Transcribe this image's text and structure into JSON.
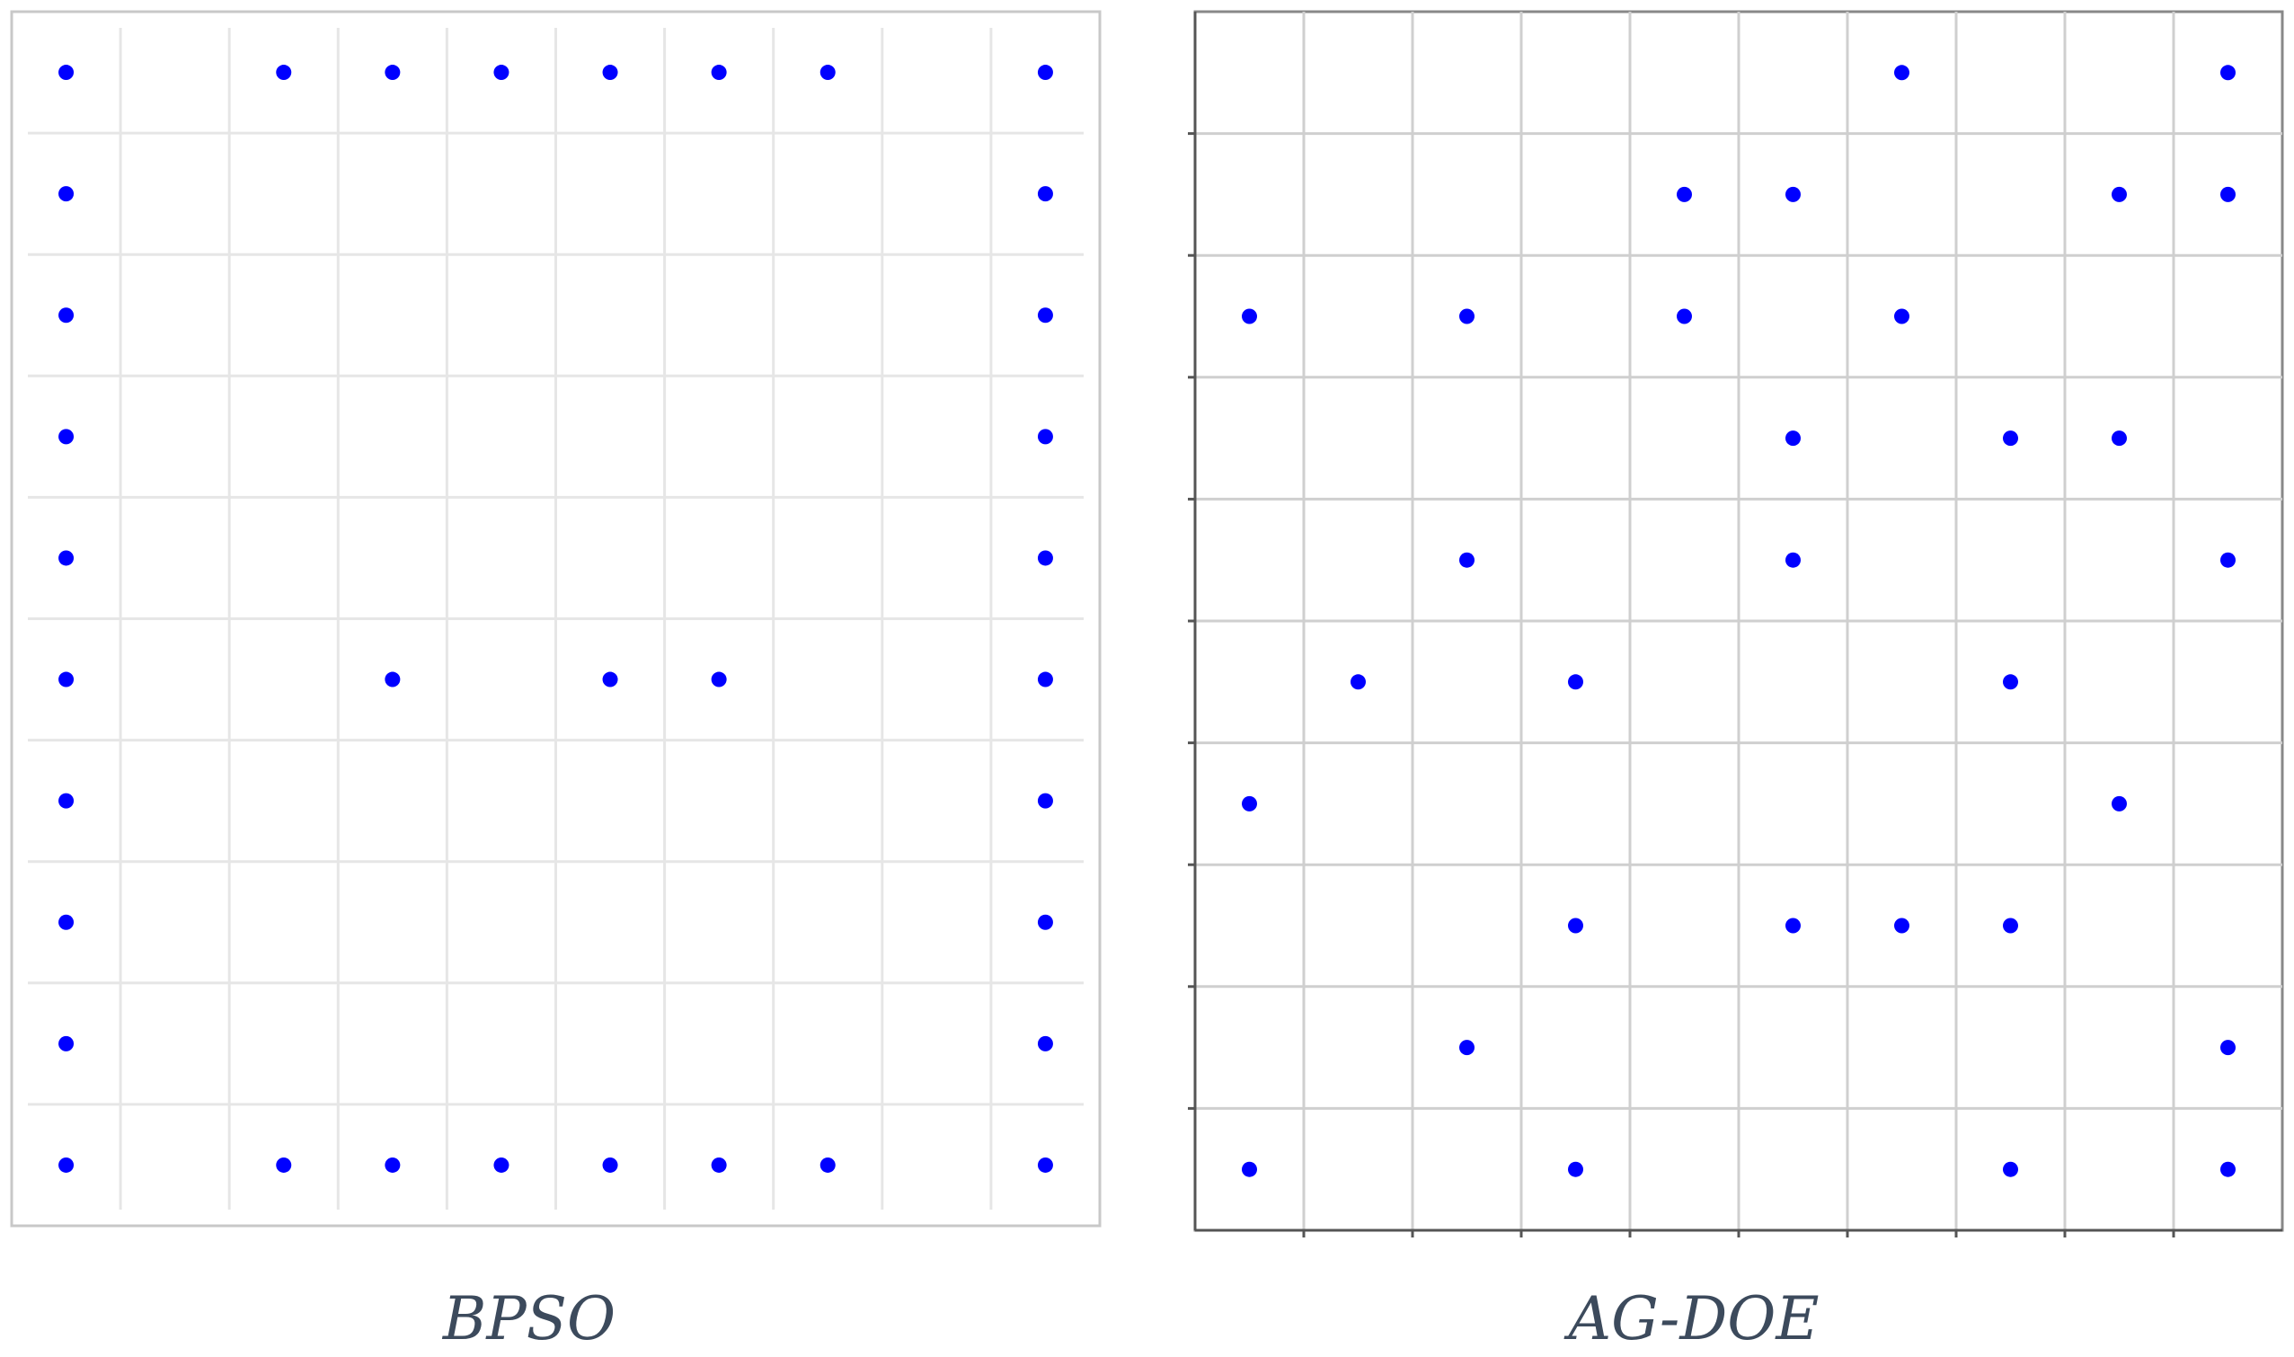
{
  "chart_data": [
    {
      "type": "scatter",
      "title": "BPSO",
      "color": "#0000ff",
      "grid": true,
      "grid_color": "#e6e6e6",
      "axis_ticks": false,
      "xlim": [
        0.5,
        10.5
      ],
      "ylim": [
        0.5,
        10.5
      ],
      "xticks": [
        1.5,
        2.5,
        3.5,
        4.5,
        5.5,
        6.5,
        7.5,
        8.5,
        9.5
      ],
      "yticks": [
        1.5,
        2.5,
        3.5,
        4.5,
        5.5,
        6.5,
        7.5,
        8.5,
        9.5
      ],
      "x": [
        1,
        3,
        4,
        5,
        6,
        7,
        8,
        10,
        1,
        10,
        1,
        10,
        1,
        10,
        1,
        10,
        1,
        4,
        6,
        7,
        10,
        1,
        10,
        1,
        10,
        1,
        10,
        1,
        3,
        4,
        5,
        6,
        7,
        8,
        10
      ],
      "y": [
        10,
        10,
        10,
        10,
        10,
        10,
        10,
        10,
        9,
        9,
        8,
        8,
        7,
        7,
        6,
        6,
        5,
        5,
        5,
        5,
        5,
        4,
        4,
        3,
        3,
        2,
        2,
        1,
        1,
        1,
        1,
        1,
        1,
        1,
        1
      ]
    },
    {
      "type": "scatter",
      "title": "AG-DOE",
      "color": "#0000ff",
      "grid": true,
      "grid_color": "#cfcfcf",
      "axis_ticks": true,
      "xlim": [
        0.5,
        10.5
      ],
      "ylim": [
        0.5,
        10.5
      ],
      "xticks": [
        1.5,
        2.5,
        3.5,
        4.5,
        5.5,
        6.5,
        7.5,
        8.5,
        9.5
      ],
      "yticks": [
        1.5,
        2.5,
        3.5,
        4.5,
        5.5,
        6.5,
        7.5,
        8.5,
        9.5
      ],
      "x": [
        7,
        10,
        5,
        6,
        9,
        10,
        1,
        3,
        5,
        7,
        6,
        8,
        9,
        3,
        6,
        10,
        2,
        4,
        8,
        1,
        9,
        4,
        6,
        7,
        8,
        3,
        10,
        1,
        4,
        8,
        10
      ],
      "y": [
        10,
        10,
        9,
        9,
        9,
        9,
        8,
        8,
        8,
        8,
        7,
        7,
        7,
        6,
        6,
        6,
        5,
        5,
        5,
        4,
        4,
        3,
        3,
        3,
        3,
        2,
        2,
        1,
        1,
        1,
        1
      ]
    }
  ]
}
